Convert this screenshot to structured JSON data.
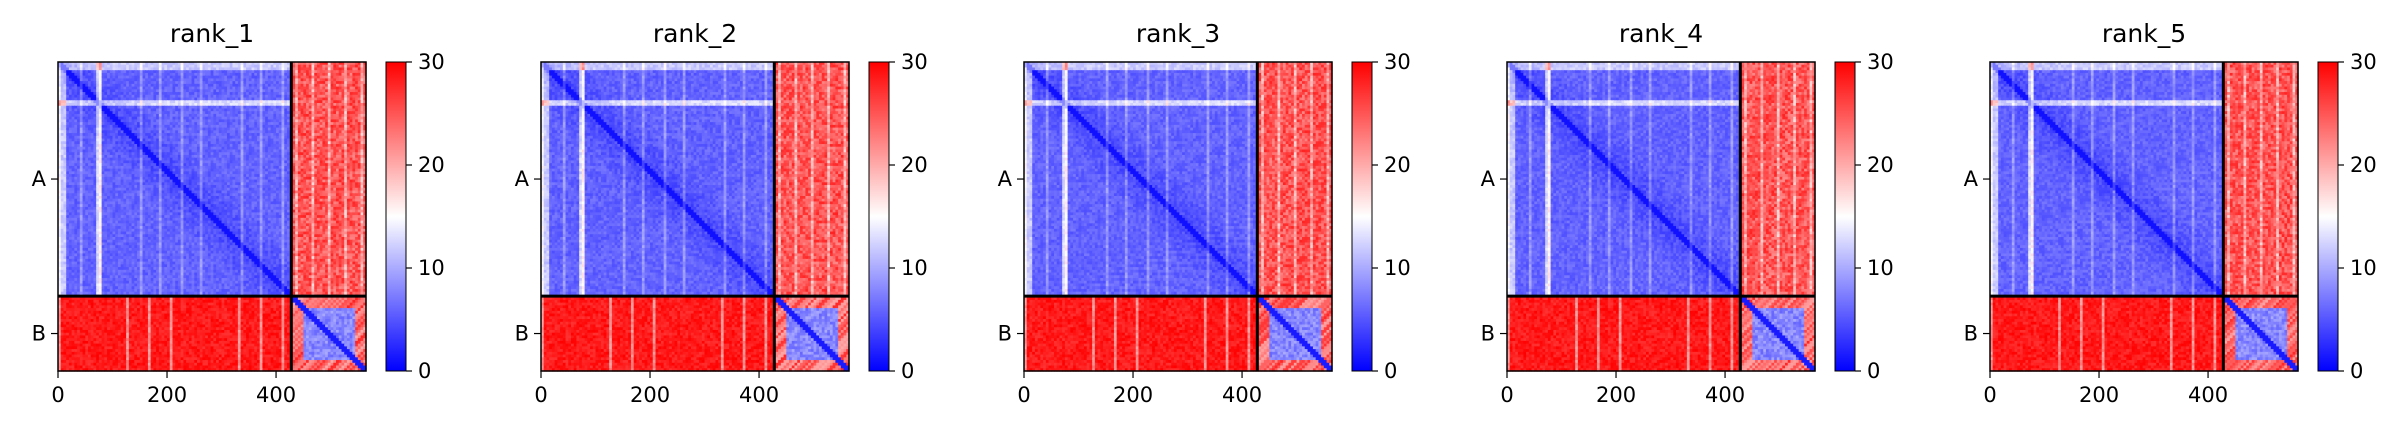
{
  "chart_data": {
    "type": "heatmap",
    "colormap": {
      "name": "bwr",
      "vmin": 0,
      "vmax": 30,
      "ticks": [
        0,
        10,
        20,
        30
      ],
      "colors": [
        "#0000ff",
        "#ffffff",
        "#ff0000"
      ]
    },
    "chain_boundary": 428,
    "axis_limits": {
      "xlim": [
        0,
        565
      ],
      "ylim": [
        0,
        565
      ]
    },
    "x_ticks": [
      0,
      200,
      400
    ],
    "y_ticks": [
      {
        "label": "A",
        "pos": 214
      },
      {
        "label": "B",
        "pos": 496.5
      }
    ],
    "panels": [
      {
        "title": "rank_1"
      },
      {
        "title": "rank_2"
      },
      {
        "title": "rank_3"
      },
      {
        "title": "rank_4"
      },
      {
        "title": "rank_5"
      }
    ]
  }
}
